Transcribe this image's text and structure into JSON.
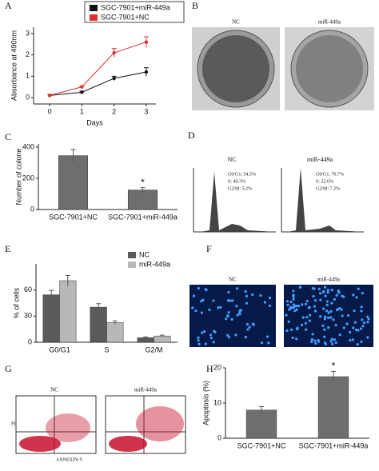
{
  "chart_data": [
    {
      "type": "line",
      "label": "A",
      "xlabel": "Days",
      "ylabel": "Absorbance at 490nm",
      "x": [
        0,
        1,
        2,
        3
      ],
      "xlim": [
        -0.5,
        3.3
      ],
      "xticks": [
        0,
        1,
        2,
        3
      ],
      "ylim": [
        -0.3,
        3.3
      ],
      "yticks": [
        0,
        1,
        2,
        3
      ],
      "legend": "top",
      "series": [
        {
          "name": "SGC-7901+miR-449a",
          "color": "#111111",
          "values": [
            0.1,
            0.25,
            0.9,
            1.2
          ],
          "errors": [
            0.05,
            0.05,
            0.1,
            0.2
          ]
        },
        {
          "name": "SGC-7901+NC",
          "color": "#e03030",
          "values": [
            0.1,
            0.5,
            2.1,
            2.6
          ],
          "errors": [
            0.05,
            0.05,
            0.2,
            0.25
          ]
        }
      ]
    },
    {
      "type": "bar",
      "label": "C",
      "ylabel": "Number of colone",
      "categories": [
        "SGC-7901+NC",
        "SGC-7901+miR-449a"
      ],
      "values": [
        345,
        125
      ],
      "errors": [
        40,
        15
      ],
      "color": "#6e6e6e",
      "ylim": [
        0,
        420
      ],
      "yticks": [
        0,
        200,
        400
      ],
      "annotation": "*"
    },
    {
      "type": "bar",
      "label": "E",
      "ylabel": "% of cells",
      "categories": [
        "G0/G1",
        "S",
        "G2/M"
      ],
      "ylim": [
        0,
        90
      ],
      "yticks": [
        0,
        30,
        60
      ],
      "legend": "upper right",
      "series": [
        {
          "name": "NC",
          "color": "#5a5a5a",
          "values": [
            54.5,
            40.3,
            5.2
          ],
          "errors": [
            5,
            4,
            1
          ]
        },
        {
          "name": "miR-449a",
          "color": "#b8b8b8",
          "values": [
            70.7,
            22.6,
            7.2
          ],
          "errors": [
            6,
            2,
            1
          ]
        }
      ]
    },
    {
      "type": "bar",
      "label": "H",
      "ylabel": "Apoptosis (%)",
      "categories": [
        "SGC-7901+NC",
        "SGC-7901+miR-449a"
      ],
      "values": [
        8,
        17.5
      ],
      "errors": [
        1,
        1.5
      ],
      "color": "#6e6e6e",
      "ylim": [
        0,
        20
      ],
      "yticks": [
        0,
        10,
        20
      ],
      "annotation": "*"
    }
  ],
  "images": {
    "B": {
      "label": "B",
      "left": "NC",
      "right": "miR-449a"
    },
    "D": {
      "label": "D",
      "left": {
        "title": "NC",
        "lines": [
          "G0/G1: 54.5%",
          "S: 40.3%",
          "G2/M: 5.2%"
        ]
      },
      "right": {
        "title": "miR-449a",
        "lines": [
          "G0/G1: 70.7%",
          "S: 22.6%",
          "G2/M: 7.2%"
        ]
      }
    },
    "F": {
      "label": "F",
      "left": "NC",
      "right": "miR-449a"
    },
    "G": {
      "label": "G",
      "left": "NC",
      "right": "miR-449a",
      "yaxis": "PI",
      "xaxis": "ANNEXIN-V"
    }
  }
}
